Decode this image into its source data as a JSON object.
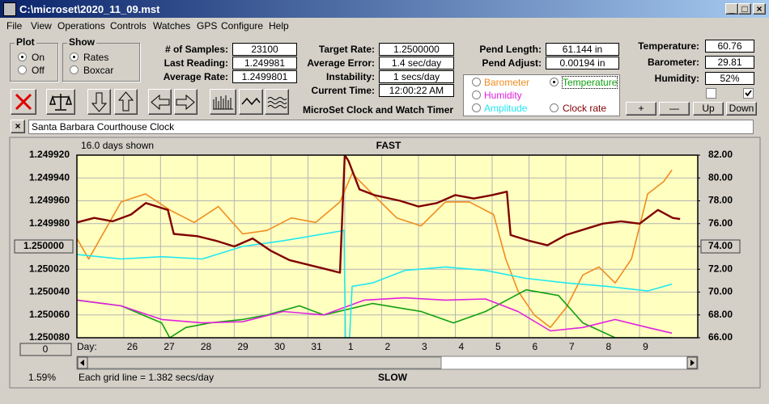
{
  "window": {
    "title": "C:\\microset\\2020_11_09.mst"
  },
  "menu": [
    "File",
    "View",
    "Operations",
    "Controls",
    "Watches",
    "GPS",
    "Configure",
    "Help"
  ],
  "plot_group": {
    "title": "Plot",
    "options": [
      "On",
      "Off"
    ]
  },
  "show_group": {
    "title": "Show",
    "options": [
      "Rates",
      "Boxcar"
    ]
  },
  "fields": [
    {
      "label": "# of Samples:",
      "value": "23100"
    },
    {
      "label": "Last Reading:",
      "value": "1.249981"
    },
    {
      "label": "Average Rate:",
      "value": "1.2499801"
    },
    {
      "label": "Target Rate:",
      "value": "1.2500000"
    },
    {
      "label": "Average Error:",
      "value": "1.4 sec/day"
    },
    {
      "label": "Instability:",
      "value": "1 secs/day"
    },
    {
      "label": "Current Time:",
      "value": "12:00:22 AM"
    },
    {
      "label": "Pend Length:",
      "value": "61.144 in"
    },
    {
      "label": "Pend Adjust:",
      "value": "0.00194 in"
    },
    {
      "label": "Temperature:",
      "value": "60.76"
    },
    {
      "label": "Barometer:",
      "value": "29.81"
    },
    {
      "label": "Humidity:",
      "value": "52%"
    }
  ],
  "app_title": "MicroSet Clock and Watch Timer",
  "buttons": [
    "+",
    "—",
    "Up",
    "Down"
  ],
  "clock_name": "Santa Barbara Courthouse Clock",
  "zoom_value": "0",
  "percent": "1.59%",
  "chart_data": {
    "type": "line",
    "subtitle": "16.0 days shown",
    "top_label": "FAST",
    "bottom_label": "SLOW",
    "note": "Each grid line = 1.382 secs/day",
    "x_label": "Day:",
    "xlim": [
      -1.27,
      15.58
    ],
    "xticks": [
      {
        "value": 0,
        "label": "26"
      },
      {
        "value": 1,
        "label": "27"
      },
      {
        "value": 2,
        "label": "28"
      },
      {
        "value": 3,
        "label": "29"
      },
      {
        "value": 4,
        "label": "30"
      },
      {
        "value": 5,
        "label": "31"
      },
      {
        "value": 6,
        "label": "1"
      },
      {
        "value": 7,
        "label": "2"
      },
      {
        "value": 8,
        "label": "3"
      },
      {
        "value": 9,
        "label": "4"
      },
      {
        "value": 10,
        "label": "5"
      },
      {
        "value": 11,
        "label": "6"
      },
      {
        "value": 12,
        "label": "7"
      },
      {
        "value": 13,
        "label": "8"
      },
      {
        "value": 14,
        "label": "9"
      }
    ],
    "ylim": [
      1.25008,
      1.24992
    ],
    "yticks": [
      {
        "value": 1.24992,
        "label": "1.249920"
      },
      {
        "value": 1.24994,
        "label": "1.249940"
      },
      {
        "value": 1.24996,
        "label": "1.249960"
      },
      {
        "value": 1.24998,
        "label": "1.249980"
      },
      {
        "value": 1.25,
        "label": "1.250000"
      },
      {
        "value": 1.25002,
        "label": "1.250020"
      },
      {
        "value": 1.25004,
        "label": "1.250040"
      },
      {
        "value": 1.25006,
        "label": "1.250060"
      },
      {
        "value": 1.25008,
        "label": "1.250080"
      }
    ],
    "y2lim": [
      66,
      82
    ],
    "y2ticks": [
      {
        "value": 66,
        "label": "66.00"
      },
      {
        "value": 68,
        "label": "68.00"
      },
      {
        "value": 70,
        "label": "70.00"
      },
      {
        "value": 72,
        "label": "72.00"
      },
      {
        "value": 74,
        "label": "74.00"
      },
      {
        "value": 76,
        "label": "76.00"
      },
      {
        "value": 78,
        "label": "78.00"
      },
      {
        "value": 80,
        "label": "80.00"
      },
      {
        "value": 82,
        "label": "82.00"
      }
    ],
    "grid": true,
    "series": [
      {
        "name": "Barometer",
        "color": "#f08c1e",
        "axis": "y2",
        "x": [
          -1.27,
          -0.95,
          -0.51,
          -0.07,
          0.59,
          1.25,
          1.91,
          2.57,
          3.23,
          3.89,
          4.55,
          5.21,
          5.87,
          6.2,
          6.75,
          7.41,
          8.07,
          8.73,
          9.38,
          10.04,
          10.37,
          10.7,
          11.14,
          11.58,
          12.02,
          12.46,
          12.9,
          13.34,
          13.78,
          14.22,
          14.66,
          14.88
        ],
        "values": [
          74.7,
          72.9,
          75.4,
          77.9,
          78.6,
          77.2,
          76.1,
          77.5,
          75.1,
          75.4,
          76.5,
          76.1,
          77.9,
          80.4,
          78.6,
          76.5,
          75.8,
          77.9,
          77.9,
          76.8,
          72.9,
          70.1,
          68.0,
          66.9,
          68.7,
          71.5,
          72.2,
          70.8,
          72.9,
          78.6,
          79.7,
          80.7
        ]
      },
      {
        "name": "Temperature",
        "color": "#10a010",
        "axis": "y2",
        "x": [
          -1.27,
          -0.07,
          1.03,
          1.25,
          1.69,
          2.35,
          3.23,
          3.89,
          4.77,
          5.43,
          6.75,
          8.07,
          8.95,
          9.82,
          10.92,
          11.8,
          12.46,
          13.34,
          14.88
        ],
        "values": [
          69.3,
          68.8,
          67.3,
          66,
          66.9,
          67.3,
          67.6,
          68.0,
          68.8,
          68.0,
          69.0,
          68.3,
          67.3,
          68.3,
          70.2,
          69.7,
          67.3,
          66,
          66
        ]
      },
      {
        "name": "Humidity",
        "color": "#e020e0",
        "axis": "y2",
        "x": [
          -1.27,
          -0.07,
          1.03,
          2.13,
          3.23,
          4.33,
          5.43,
          6.53,
          7.63,
          8.73,
          9.82,
          10.7,
          11.58,
          12.46,
          13.34,
          14.22,
          14.88
        ],
        "values": [
          69.3,
          68.8,
          67.6,
          67.3,
          67.4,
          68.3,
          68.0,
          69.3,
          69.5,
          69.3,
          69.4,
          68.3,
          66.6,
          66.9,
          67.6,
          66.9,
          66.4
        ]
      },
      {
        "name": "Amplitude",
        "color": "#20e8f0",
        "axis": "y2",
        "x": [
          -1.27,
          -0.07,
          1.03,
          2.13,
          3.23,
          4.33,
          5.43,
          5.98,
          6.02,
          6.13,
          6.2,
          6.75,
          7.63,
          8.73,
          9.82,
          10.92,
          12.02,
          13.12,
          14.22,
          14.88
        ],
        "values": [
          73.3,
          72.9,
          73.1,
          72.9,
          74.0,
          74.5,
          75.1,
          75.4,
          66,
          66,
          70.5,
          70.8,
          71.9,
          72.2,
          71.9,
          71.2,
          70.8,
          70.5,
          70.1,
          70.7
        ]
      },
      {
        "name": "Clock rate",
        "color": "#800000",
        "axis": "y",
        "x": [
          -1.27,
          -0.8,
          -0.3,
          0.2,
          0.6,
          1.2,
          1.36,
          2.0,
          2.5,
          3.0,
          3.5,
          4.0,
          4.5,
          5.0,
          5.5,
          5.87,
          6.0,
          6.1,
          6.4,
          6.8,
          7.5,
          8.0,
          8.5,
          9.0,
          9.5,
          10.0,
          10.4,
          10.5,
          11.0,
          11.5,
          12.0,
          12.5,
          13.0,
          13.5,
          14.0,
          14.5,
          14.9,
          15.1
        ],
        "values": [
          1.249979,
          1.249975,
          1.249978,
          1.249972,
          1.249962,
          1.249968,
          1.249989,
          1.249991,
          1.249995,
          1.25,
          1.249993,
          1.250004,
          1.250012,
          1.250016,
          1.25002,
          1.250023,
          1.24992,
          1.249925,
          1.24995,
          1.249955,
          1.24996,
          1.249965,
          1.249962,
          1.249955,
          1.249958,
          1.249955,
          1.249952,
          1.24999,
          1.249995,
          1.249999,
          1.24999,
          1.249985,
          1.24998,
          1.249978,
          1.24998,
          1.249968,
          1.249975,
          1.249976
        ]
      }
    ]
  }
}
